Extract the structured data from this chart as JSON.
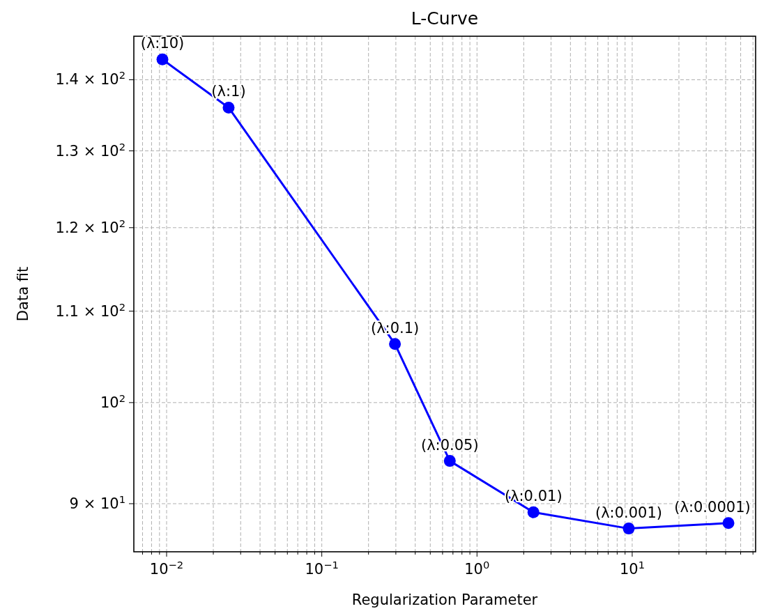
{
  "chart_data": {
    "type": "line",
    "title": "L-Curve",
    "xlabel": "Regularization Parameter",
    "ylabel": "Data fit",
    "x": [
      0.0094,
      0.0251,
      0.296,
      0.668,
      2.31,
      9.5,
      41.7
    ],
    "series": [
      {
        "color": "#0000ff",
        "values": [
          143,
          136,
          106.3,
          94.1,
          89.2,
          87.7,
          88.2
        ]
      }
    ],
    "log": "xy",
    "xlim": [
      0.00615,
      62.4
    ],
    "ylim": [
      85.6,
      146.5
    ],
    "xticks": [
      {
        "value": 0.01,
        "label": "10$^{−2}$"
      },
      {
        "value": 0.1,
        "label": "10$^{−1}$"
      },
      {
        "value": 1,
        "label": "10$^{0}$"
      },
      {
        "value": 10,
        "label": "10$^{1}$"
      }
    ],
    "yticks": [
      {
        "value": 90,
        "label": "9 × 10$^{1}$"
      },
      {
        "value": 100,
        "label": "10$^{2}$"
      },
      {
        "value": 110,
        "label": "1.1 × 10$^{2}$"
      },
      {
        "value": 120,
        "label": "1.2 × 10$^{2}$"
      },
      {
        "value": 130,
        "label": "1.3 × 10$^{2}$"
      },
      {
        "value": 140,
        "label": "1.4 × 10$^{2}$"
      }
    ],
    "grid": true,
    "marker": "circle",
    "line_style": "solid",
    "annotations": [
      {
        "text": "(λ:10)",
        "x": 0.0094,
        "y": 143
      },
      {
        "text": "(λ:1)",
        "x": 0.0251,
        "y": 136
      },
      {
        "text": "(λ:0.1)",
        "x": 0.296,
        "y": 106.3
      },
      {
        "text": "(λ:0.05)",
        "x": 0.668,
        "y": 94.1
      },
      {
        "text": "(λ:0.01)",
        "x": 2.31,
        "y": 89.2
      },
      {
        "text": "(λ:0.001)",
        "x": 9.5,
        "y": 87.7
      },
      {
        "text": "(λ:0.0001)",
        "x": 41.7,
        "y": 88.2
      }
    ]
  }
}
